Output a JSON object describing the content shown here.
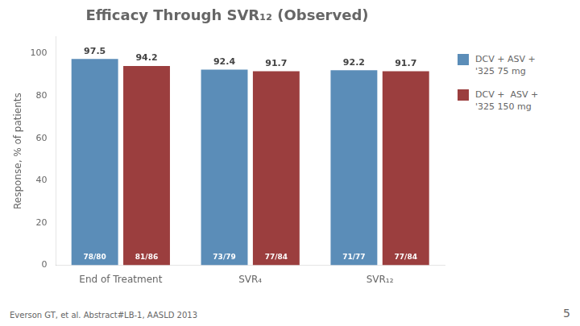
{
  "chart_data": {
    "type": "bar",
    "title": "Efficacy Through SVR₁₂ (Observed)",
    "y_label": "Response, % of patients",
    "categories": [
      "End of Treatment",
      "SVR₄",
      "SVR₁₂"
    ],
    "series": [
      {
        "name": "DCV + ASV +\n'325 75 mg",
        "color": "#5b8db8",
        "values": [
          97.5,
          92.4,
          92.2
        ],
        "annotations": [
          "78/80",
          "73/79",
          "71/77"
        ]
      },
      {
        "name": "DCV +  ASV +\n'325 150 mg",
        "color": "#9b3e3e",
        "values": [
          94.2,
          91.7,
          91.7
        ],
        "annotations": [
          "81/86",
          "77/84",
          "77/84"
        ]
      }
    ],
    "ylim": [
      0,
      108
    ],
    "yticks": [
      0,
      20,
      40,
      60,
      80,
      100
    ],
    "grid": false,
    "legend": "right",
    "data_labels": true,
    "footnote": "Everson GT, et al. Abstract#LB-1, AASLD 2013",
    "page_number": "5"
  }
}
